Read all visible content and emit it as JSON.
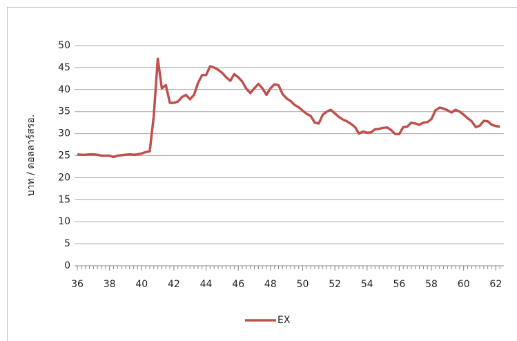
{
  "chart_data": {
    "type": "line",
    "y_label": "บาท / ดอลลาร์สรอ.",
    "x": [
      36,
      36.25,
      36.5,
      36.75,
      37,
      37.25,
      37.5,
      37.75,
      38,
      38.25,
      38.5,
      38.75,
      39,
      39.25,
      39.5,
      39.75,
      40,
      40.25,
      40.5,
      40.75,
      41,
      41.25,
      41.5,
      41.75,
      42,
      42.25,
      42.5,
      42.75,
      43,
      43.25,
      43.5,
      43.75,
      44,
      44.25,
      44.5,
      44.75,
      45,
      45.25,
      45.5,
      45.75,
      46,
      46.25,
      46.5,
      46.75,
      47,
      47.25,
      47.5,
      47.75,
      48,
      48.25,
      48.5,
      48.75,
      49,
      49.25,
      49.5,
      49.75,
      50,
      50.25,
      50.5,
      50.75,
      51,
      51.25,
      51.5,
      51.75,
      52,
      52.25,
      52.5,
      52.75,
      53,
      53.25,
      53.5,
      53.75,
      54,
      54.25,
      54.5,
      54.75,
      55,
      55.25,
      55.5,
      55.75,
      56,
      56.25,
      56.5,
      56.75,
      57,
      57.25,
      57.5,
      57.75,
      58,
      58.25,
      58.5,
      58.75,
      59,
      59.25,
      59.5,
      59.75,
      60,
      60.25,
      60.5,
      60.75,
      61,
      61.25,
      61.5,
      61.75,
      62,
      62.25
    ],
    "series": [
      {
        "name": "EX",
        "color": "#c0504d",
        "values": [
          25.3,
          25.2,
          25.2,
          25.3,
          25.3,
          25.2,
          25.0,
          25.0,
          25.0,
          24.7,
          25.0,
          25.1,
          25.2,
          25.3,
          25.2,
          25.3,
          25.5,
          25.8,
          26.0,
          34.0,
          47.0,
          40.3,
          41.0,
          37.0,
          37.0,
          37.3,
          38.3,
          38.8,
          37.8,
          38.8,
          41.5,
          43.3,
          43.3,
          45.3,
          45.0,
          44.5,
          43.8,
          42.8,
          42.0,
          43.5,
          42.8,
          41.8,
          40.2,
          39.2,
          40.3,
          41.3,
          40.3,
          38.8,
          40.3,
          41.2,
          41.0,
          39.0,
          38.0,
          37.4,
          36.5,
          36.0,
          35.2,
          34.5,
          34.0,
          32.5,
          32.3,
          34.3,
          35.0,
          35.4,
          34.6,
          33.8,
          33.2,
          32.8,
          32.2,
          31.5,
          30.0,
          30.5,
          30.2,
          30.3,
          31.0,
          31.1,
          31.3,
          31.4,
          30.8,
          29.9,
          29.9,
          31.5,
          31.6,
          32.5,
          32.3,
          32.0,
          32.5,
          32.6,
          33.3,
          35.3,
          35.9,
          35.7,
          35.3,
          34.8,
          35.4,
          35.0,
          34.3,
          33.5,
          32.8,
          31.5,
          31.8,
          32.9,
          32.8,
          32.0,
          31.7,
          31.6
        ]
      }
    ],
    "xlim": [
      36,
      62.5
    ],
    "xticks": [
      36,
      38,
      40,
      42,
      44,
      46,
      48,
      50,
      52,
      54,
      56,
      58,
      60,
      62
    ],
    "ylim": [
      0,
      50
    ],
    "yticks": [
      0,
      5,
      10,
      15,
      20,
      25,
      30,
      35,
      40,
      45,
      50
    ],
    "grid": true,
    "legend": "bottom"
  }
}
